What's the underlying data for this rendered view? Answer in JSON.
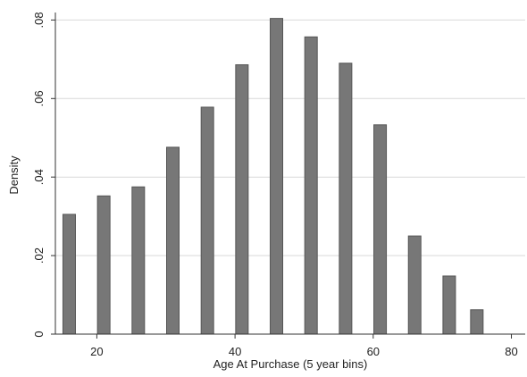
{
  "chart_data": {
    "type": "bar",
    "title": "",
    "xlabel": "Age At Purchase (5 year bins)",
    "ylabel": "Density",
    "xlim": [
      14,
      82
    ],
    "ylim": [
      0,
      0.081
    ],
    "x_ticks": [
      20,
      40,
      60,
      80
    ],
    "x_tick_labels": [
      "20",
      "40",
      "60",
      "80"
    ],
    "y_ticks": [
      0,
      0.02,
      0.04,
      0.06,
      0.08
    ],
    "y_tick_labels": [
      "0",
      ".02",
      ".04",
      ".06",
      ".08"
    ],
    "grid": "horizontal",
    "bar_color": "#777777",
    "bar_edge_color": "#555555",
    "bars": [
      {
        "x": 16.0,
        "value": 0.0305
      },
      {
        "x": 21.0,
        "value": 0.0352
      },
      {
        "x": 26.0,
        "value": 0.0375
      },
      {
        "x": 31.0,
        "value": 0.0476
      },
      {
        "x": 36.0,
        "value": 0.0578
      },
      {
        "x": 41.0,
        "value": 0.0686
      },
      {
        "x": 46.0,
        "value": 0.0804
      },
      {
        "x": 51.0,
        "value": 0.0757
      },
      {
        "x": 56.0,
        "value": 0.069
      },
      {
        "x": 61.0,
        "value": 0.0533
      },
      {
        "x": 66.0,
        "value": 0.025
      },
      {
        "x": 71.0,
        "value": 0.0148
      },
      {
        "x": 75.0,
        "value": 0.0062
      }
    ]
  }
}
